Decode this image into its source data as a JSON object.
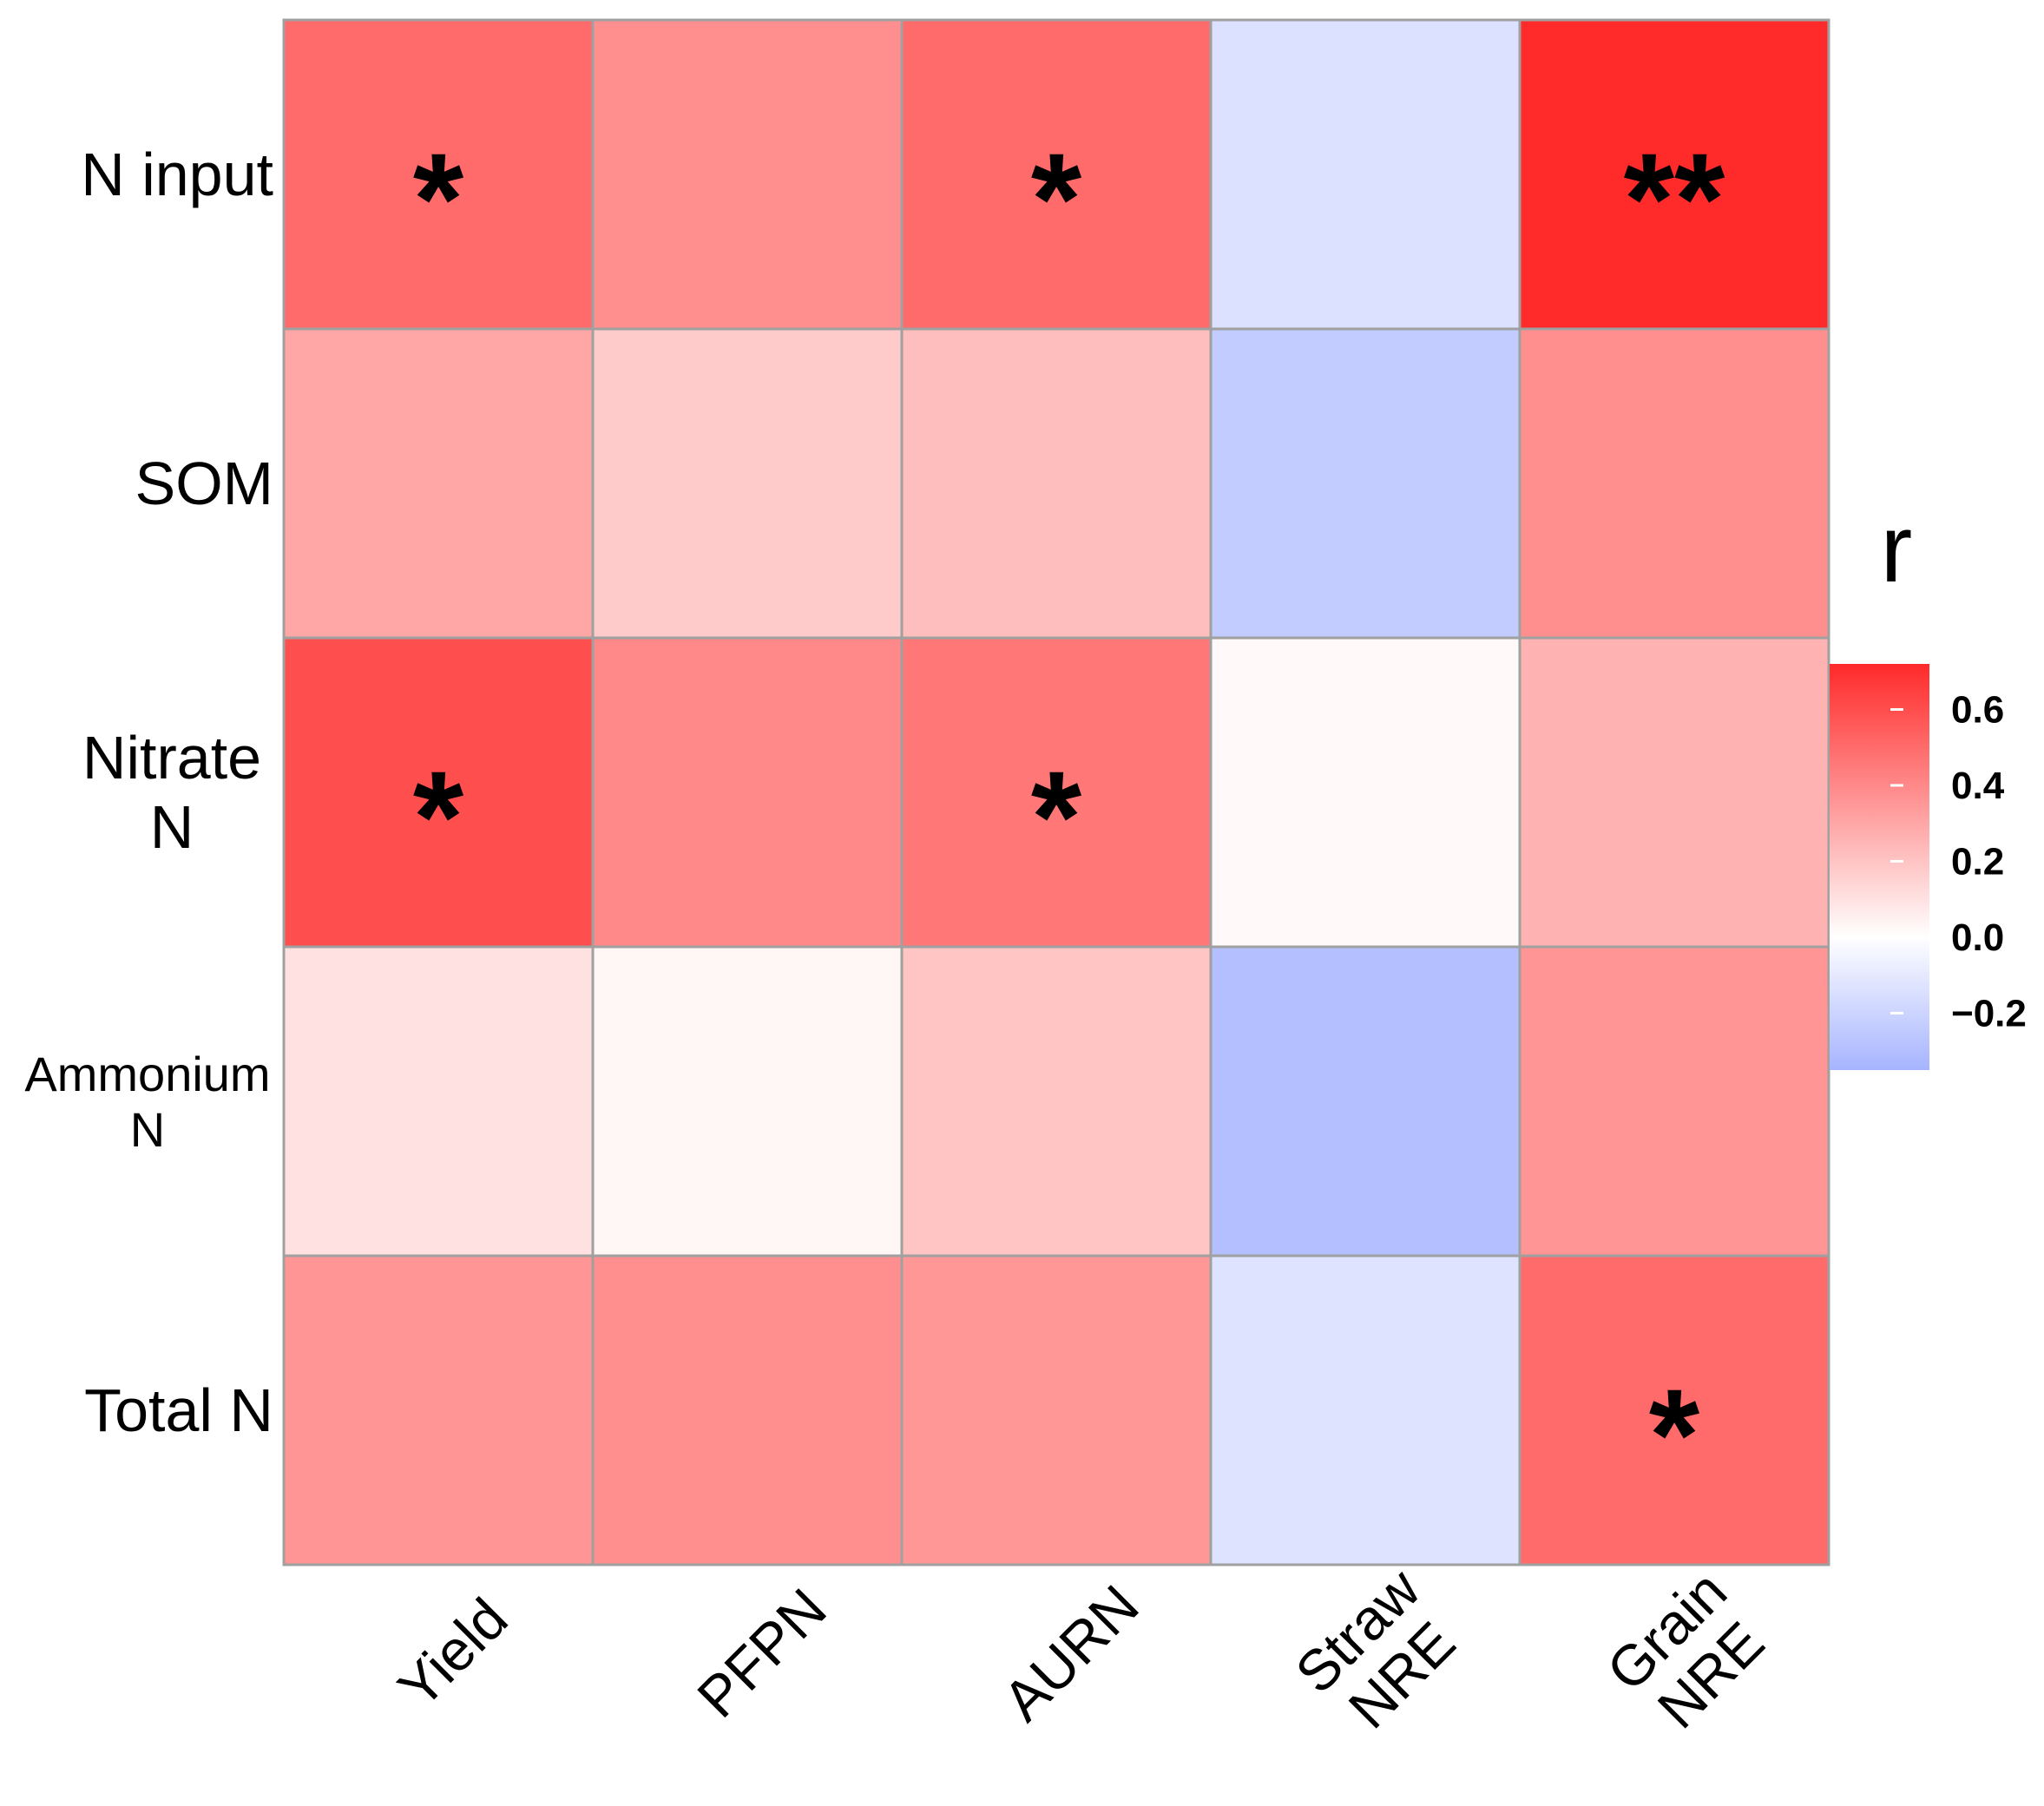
{
  "chart_data": {
    "type": "heatmap",
    "title": "",
    "rows": [
      {
        "label_lines": [
          "N input"
        ],
        "small": false
      },
      {
        "label_lines": [
          "SOM"
        ],
        "small": false
      },
      {
        "label_lines": [
          "Nitrate",
          "N"
        ],
        "small": false
      },
      {
        "label_lines": [
          "Ammonium",
          "N"
        ],
        "small": true
      },
      {
        "label_lines": [
          "Total N"
        ],
        "small": false
      }
    ],
    "columns": [
      {
        "label_lines": [
          "Yield"
        ]
      },
      {
        "label_lines": [
          "PFPN"
        ]
      },
      {
        "label_lines": [
          "AURN"
        ]
      },
      {
        "label_lines": [
          "Straw",
          "NRE"
        ]
      },
      {
        "label_lines": [
          "Grain",
          "NRE"
        ]
      }
    ],
    "values": [
      [
        0.5,
        0.38,
        0.5,
        -0.14,
        0.72
      ],
      [
        0.3,
        0.18,
        0.22,
        -0.24,
        0.38
      ],
      [
        0.6,
        0.4,
        0.46,
        0.02,
        0.26
      ],
      [
        0.1,
        0.03,
        0.2,
        -0.3,
        0.36
      ],
      [
        0.36,
        0.38,
        0.35,
        -0.13,
        0.5
      ]
    ],
    "significance": [
      [
        "*",
        "",
        "*",
        "",
        "**"
      ],
      [
        "",
        "",
        "",
        "",
        ""
      ],
      [
        "*",
        "",
        "*",
        "",
        ""
      ],
      [
        "",
        "",
        "",
        "",
        ""
      ],
      [
        "",
        "",
        "",
        "",
        "*"
      ]
    ],
    "legend": {
      "title": "r",
      "ticks": [
        0.6,
        0.4,
        0.2,
        0.0,
        -0.2
      ],
      "tick_labels": [
        "0.6",
        "0.4",
        "0.2",
        "0.0",
        "−0.2"
      ],
      "range": [
        -0.35,
        0.72
      ],
      "position": "right"
    },
    "colors": {
      "low": "#a6b4ff",
      "mid": "#ffffff",
      "high": "#ff2a2a",
      "grid": "#a0a0a0"
    }
  }
}
